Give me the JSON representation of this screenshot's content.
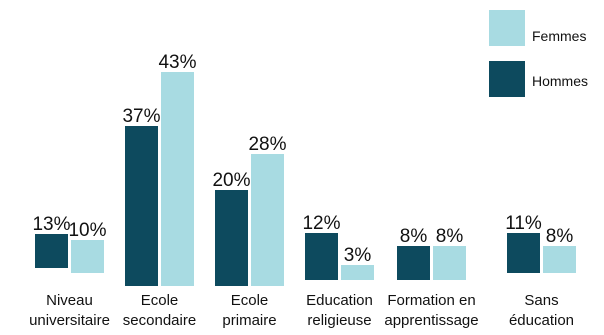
{
  "chart_data": {
    "type": "bar",
    "categories": [
      [
        "Niveau",
        "universitaire"
      ],
      [
        "Ecole",
        "secondaire"
      ],
      [
        "Ecole",
        "primaire"
      ],
      [
        "Education",
        "religieuse"
      ],
      [
        "Formation en",
        "apprentissage"
      ],
      [
        "Sans",
        "éducation"
      ]
    ],
    "series": [
      {
        "name": "Hommes",
        "color": "#0d4a5e",
        "values": [
          13,
          37,
          20,
          12,
          8,
          11
        ],
        "labels": [
          "13%",
          "37%",
          "20%",
          "12%",
          "8%",
          "11%"
        ]
      },
      {
        "name": "Femmes",
        "color": "#a8dbe2",
        "values": [
          10,
          43,
          28,
          3,
          8,
          8
        ],
        "labels": [
          "10%",
          "43%",
          "28%",
          "3%",
          "8%",
          "8%"
        ]
      }
    ],
    "legend_position": "top-right",
    "grid": false
  }
}
